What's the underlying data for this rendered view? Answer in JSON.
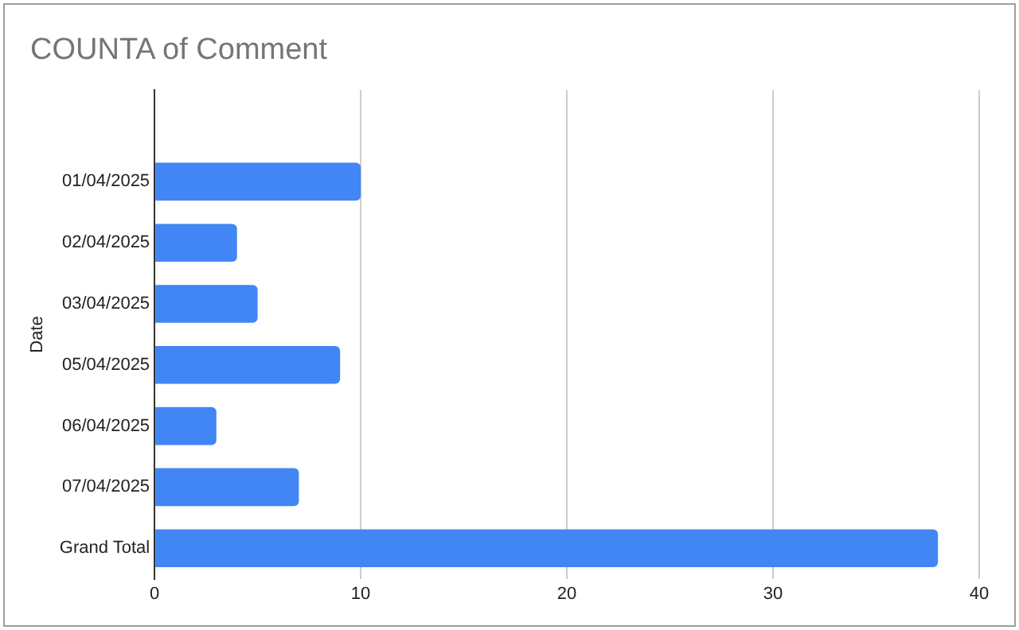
{
  "chart_data": {
    "type": "bar",
    "orientation": "horizontal",
    "title": "COUNTA of Comment",
    "ylabel": "Date",
    "categories": [
      null,
      "01/04/2025",
      "02/04/2025",
      "03/04/2025",
      "05/04/2025",
      "06/04/2025",
      "07/04/2025",
      "Grand Total"
    ],
    "values": [
      null,
      10,
      4,
      5,
      9,
      3,
      7,
      38
    ],
    "color": "#4285f4",
    "xlim": [
      0,
      40
    ],
    "xticks": [
      0,
      10,
      20,
      30,
      40
    ],
    "grid": "x",
    "legend": false
  }
}
